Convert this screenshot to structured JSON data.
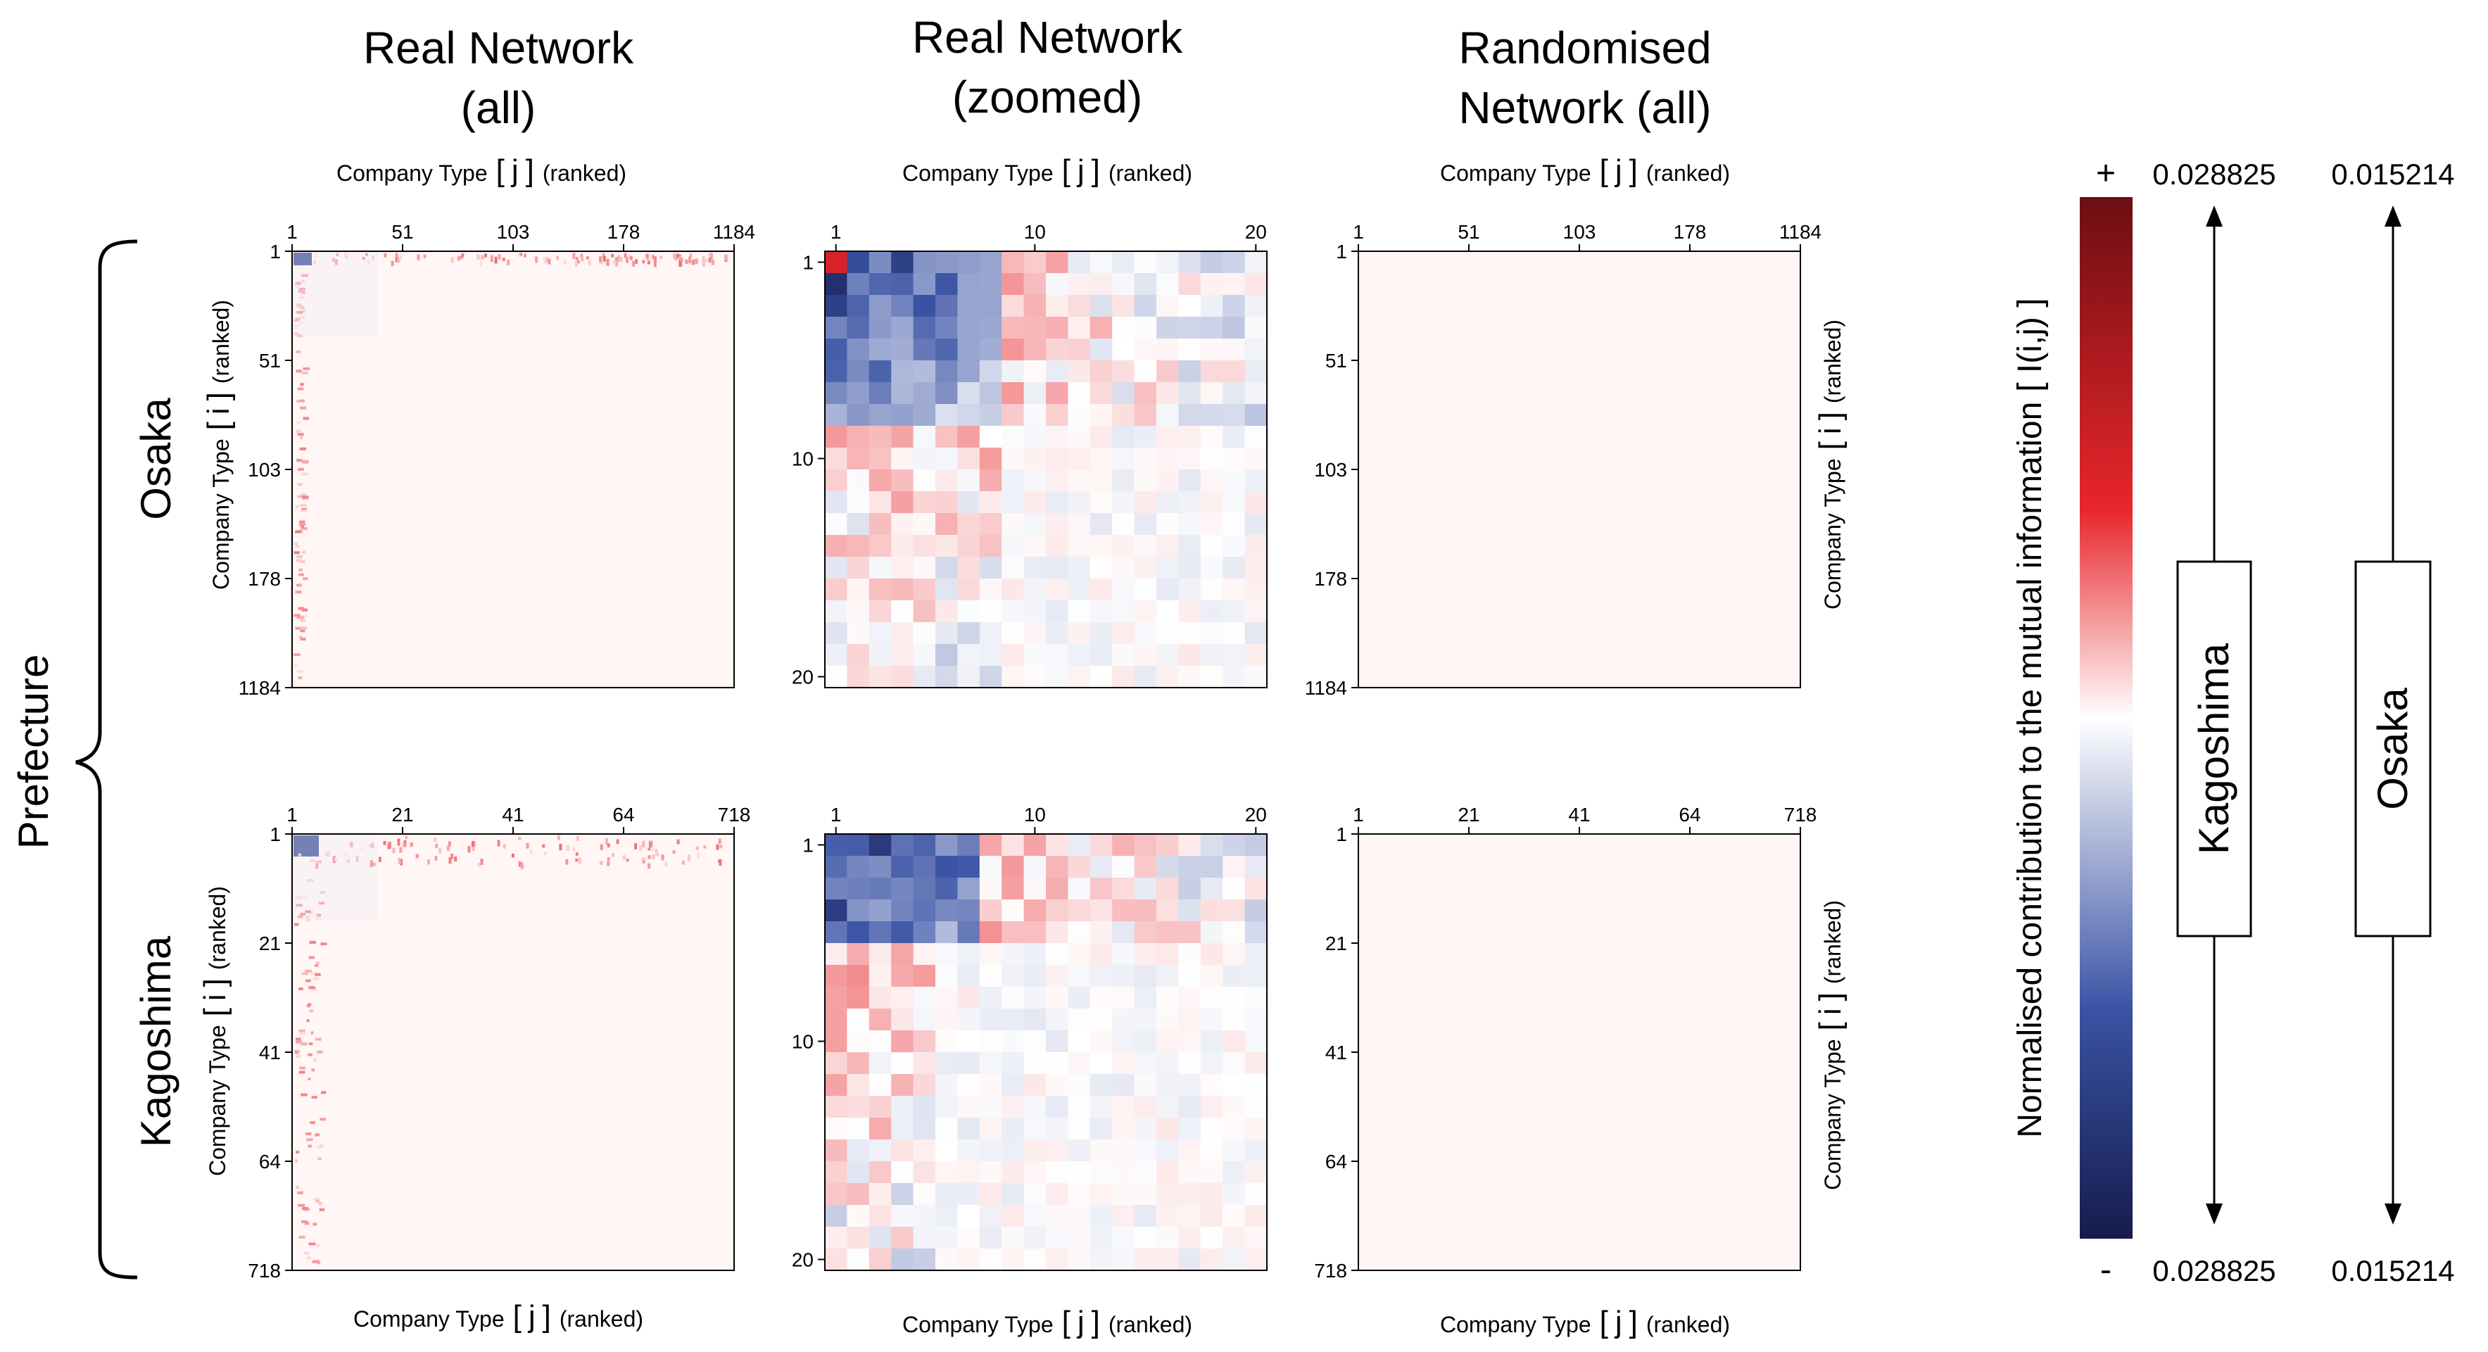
{
  "columns": [
    {
      "title_line1": "Real Network",
      "title_line2": "(all)"
    },
    {
      "title_line1": "Real Network",
      "title_line2": "(zoomed)"
    },
    {
      "title_line1": "Randomised",
      "title_line2": "Network (all)"
    }
  ],
  "rows": [
    {
      "name": "Osaka"
    },
    {
      "name": "Kagoshima"
    }
  ],
  "group_label": "Prefecture",
  "axis": {
    "x_main": "Company Type",
    "x_bracket_open": "[",
    "x_var": "j",
    "x_bracket_close": "]",
    "x_suffix": "(ranked)",
    "y_main": "Company Type",
    "y_var": "i",
    "y_suffix": "(ranked)"
  },
  "colorbar": {
    "label_text": "Normalised contribution to the mutual information",
    "label_symbol": "[ I(i,j) ]",
    "plus": "+",
    "minus": "-",
    "colors": {
      "max": "#6b0f12",
      "high": "#e8262b",
      "mid": "#ffffff",
      "low": "#3a53a4",
      "min": "#161b4d"
    }
  },
  "ranges": [
    {
      "label": "Kagoshima",
      "max": "0.028825",
      "min": "0.028825"
    },
    {
      "label": "Osaka",
      "max": "0.015214",
      "min": "0.015214"
    }
  ],
  "chart_data": [
    {
      "type": "heatmap",
      "panel": "Osaka - Real Network (all)",
      "ticks": [
        "1",
        "51",
        "103",
        "178",
        "1184"
      ],
      "xlabel": "Company Type [ j ] (ranked)",
      "ylabel": "Company Type [ i ] (ranked)",
      "pattern": "strong negative block at top-left corner, weak positive first row and first column, near-zero elsewhere",
      "vrange": [
        -0.015214,
        0.015214
      ]
    },
    {
      "type": "heatmap",
      "panel": "Osaka - Real Network (zoomed)",
      "ticks": [
        "1",
        "10",
        "20"
      ],
      "xlabel": "Company Type [ j ] (ranked)",
      "ylabel": "Company Type [ i ] (ranked)",
      "pattern": "top-left ~8x8 negative block (deep blue), positive (red) off-diagonal blocks, near-zero lower right",
      "vrange": [
        -0.015214,
        0.015214
      ]
    },
    {
      "type": "heatmap",
      "panel": "Osaka - Randomised Network (all)",
      "ticks": [
        "1",
        "51",
        "103",
        "178",
        "1184"
      ],
      "xlabel": "Company Type [ j ] (ranked)",
      "ylabel": "Company Type [ i ] (ranked)",
      "pattern": "uniform near-zero",
      "vrange": [
        -0.015214,
        0.015214
      ]
    },
    {
      "type": "heatmap",
      "panel": "Kagoshima - Real Network (all)",
      "ticks": [
        "1",
        "21",
        "41",
        "64",
        "718"
      ],
      "xlabel": "Company Type [ j ] (ranked)",
      "ylabel": "Company Type [ i ] (ranked)",
      "pattern": "negative block at top-left corner, positive first rows and first columns, near-zero elsewhere",
      "vrange": [
        -0.028825,
        0.028825
      ]
    },
    {
      "type": "heatmap",
      "panel": "Kagoshima - Real Network (zoomed)",
      "ticks": [
        "1",
        "10",
        "20"
      ],
      "xlabel": "Company Type [ j ] (ranked)",
      "ylabel": "Company Type [ i ] (ranked)",
      "pattern": "top-left ~5x7 negative block, positive cells in first columns below, weak elsewhere",
      "vrange": [
        -0.028825,
        0.028825
      ]
    },
    {
      "type": "heatmap",
      "panel": "Kagoshima - Randomised Network (all)",
      "ticks": [
        "1",
        "21",
        "41",
        "64",
        "718"
      ],
      "xlabel": "Company Type [ j ] (ranked)",
      "ylabel": "Company Type [ i ] (ranked)",
      "pattern": "uniform near-zero",
      "vrange": [
        -0.028825,
        0.028825
      ]
    }
  ]
}
